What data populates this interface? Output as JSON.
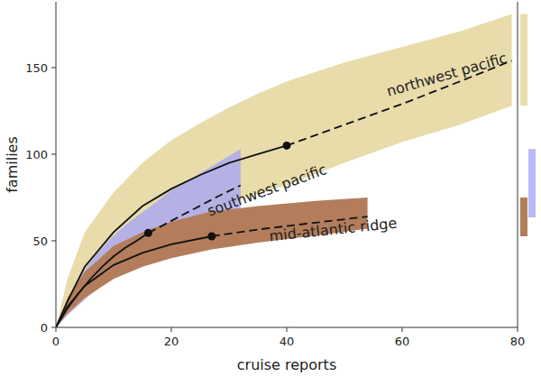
{
  "chart_data": {
    "type": "line",
    "x_label": "cruise reports",
    "y_label": "families",
    "xlim": [
      0,
      80
    ],
    "xticks": [
      0,
      20,
      40,
      60,
      80
    ],
    "ylim": [
      0,
      188
    ],
    "yticks": [
      0,
      50,
      100,
      150
    ],
    "grid": false,
    "series": [
      {
        "name": "northwest pacific",
        "color": "#e8dcab",
        "x": [
          0,
          2,
          5,
          10,
          15,
          20,
          25,
          30,
          35,
          40,
          50,
          60,
          70,
          79
        ],
        "values": [
          0,
          15,
          35,
          55,
          70,
          80,
          88,
          95,
          100,
          105,
          117,
          129,
          142,
          154
        ],
        "lower": [
          0,
          8,
          22,
          37,
          48,
          57,
          64,
          71,
          77,
          82,
          95,
          107,
          117,
          128
        ],
        "upper": [
          0,
          28,
          55,
          78,
          95,
          108,
          118,
          127,
          135,
          142,
          153,
          162,
          171,
          181
        ],
        "observed": {
          "x": 40,
          "value": 105
        },
        "asymptote": [
          128,
          181
        ]
      },
      {
        "name": "southwest pacific",
        "color": "#a9a6f2",
        "x": [
          0,
          2,
          4,
          6,
          8,
          10,
          12,
          14,
          16,
          20,
          24,
          28,
          32
        ],
        "values": [
          0,
          11,
          20,
          28,
          35,
          41,
          46,
          50,
          54.5,
          61.5,
          68.5,
          75.5,
          82
        ],
        "lower": [
          0,
          7,
          13,
          19,
          24,
          29,
          33,
          37,
          41,
          47,
          52,
          57,
          62.5
        ],
        "upper": [
          0,
          16,
          28,
          38,
          46,
          53,
          59,
          64,
          69,
          79,
          87,
          95,
          103
        ],
        "observed": {
          "x": 16,
          "value": 54.5
        },
        "asymptote": [
          63.5,
          103
        ]
      },
      {
        "name": "mid-atlantic ridge",
        "color": "#b37d5c",
        "x": [
          0,
          2,
          5,
          10,
          15,
          20,
          27,
          35,
          45,
          54
        ],
        "values": [
          0,
          12,
          24,
          36,
          43,
          48,
          52.6,
          56.5,
          60.5,
          64
        ],
        "lower": [
          0,
          8,
          17,
          28,
          35,
          40,
          45,
          49,
          53,
          57
        ],
        "upper": [
          0,
          17,
          32,
          47,
          55,
          61,
          67,
          70,
          73,
          75
        ],
        "observed": {
          "x": 27,
          "value": 52.6
        },
        "asymptote": [
          52.6,
          75
        ]
      }
    ]
  }
}
